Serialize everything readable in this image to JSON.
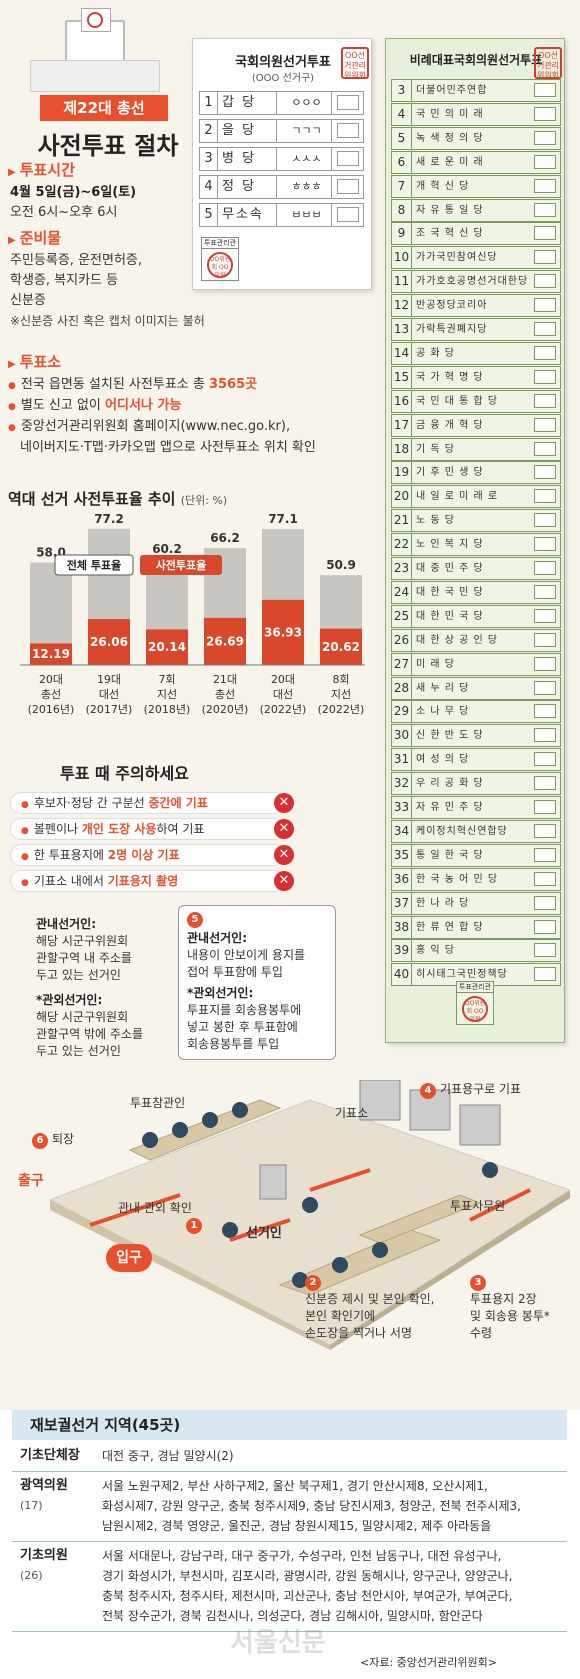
{
  "header": {
    "tag": "제22대 총선",
    "title": "사전투표 절차"
  },
  "sections": {
    "time": {
      "heading": "투표시간",
      "date": "4월 5일(금)~6일(토)",
      "hours": "오전 6시~오후 6시"
    },
    "items": {
      "heading": "준비물",
      "line1": "주민등록증, 운전면허증,",
      "line2": "학생증, 복지카드 등",
      "line3": "신분증",
      "note": "※신분증 사진 혹은 캡처 이미지는 불허"
    },
    "place": {
      "heading": "투표소",
      "b1_pre": "전국 읍면동 설치된 사전투표소 총 ",
      "b1_hl": "3565곳",
      "b2_pre": "별도 신고 없이 ",
      "b2_hl": "어디서나 가능",
      "b3_line1": "중앙선거관리위원회 홈페이지(www.nec.go.kr),",
      "b3_line2": "네이버지도·T맵·카카오맵 앱으로 사전투표소 위치 확인"
    }
  },
  "district_ballot": {
    "title": "국회의원선거투표",
    "subtitle": "(OOO 선거구)",
    "rows": [
      {
        "num": "1",
        "party": "갑  당",
        "cand": "ㅇㅇㅇ"
      },
      {
        "num": "2",
        "party": "을  당",
        "cand": "ㄱㄱㄱ"
      },
      {
        "num": "3",
        "party": "병  당",
        "cand": "ㅅㅅㅅ"
      },
      {
        "num": "4",
        "party": "정  당",
        "cand": "ㅎㅎㅎ"
      },
      {
        "num": "5",
        "party": "무소속",
        "cand": "ㅂㅂㅂ"
      }
    ],
    "stamp_label": "투표관리관",
    "stamp_text": "OO위원회 OO위원",
    "top_stamp": "OO선거관리위원회"
  },
  "pr_ballot": {
    "title": "비례대표국회의원선거투표",
    "stamp_label": "투표관리관",
    "stamp_text": "OO위원회 OO위원",
    "top_stamp": "OO선거관리위원회",
    "rows": [
      {
        "num": "3",
        "party": "더불어민주연합"
      },
      {
        "num": "4",
        "party": "국 민 의 미 래"
      },
      {
        "num": "5",
        "party": "녹 색 정 의 당"
      },
      {
        "num": "6",
        "party": "새 로 운 미 래"
      },
      {
        "num": "7",
        "party": "개   혁   신   당"
      },
      {
        "num": "8",
        "party": "자 유 통 일 당"
      },
      {
        "num": "9",
        "party": "조 국 혁 신 당"
      },
      {
        "num": "10",
        "party": "가가국민참여신당"
      },
      {
        "num": "11",
        "party": "가가호호공명선거대한당"
      },
      {
        "num": "12",
        "party": "반공정당코리아"
      },
      {
        "num": "13",
        "party": "가락특권폐지당"
      },
      {
        "num": "14",
        "party": "공        화        당"
      },
      {
        "num": "15",
        "party": "국 가 혁 명 당"
      },
      {
        "num": "16",
        "party": "국 민 대 통 합 당"
      },
      {
        "num": "17",
        "party": "금 융 개 혁 당"
      },
      {
        "num": "18",
        "party": "기        독        당"
      },
      {
        "num": "19",
        "party": "기 후 민 생 당"
      },
      {
        "num": "20",
        "party": "내 일 로 미 래 로"
      },
      {
        "num": "21",
        "party": "노        동        당"
      },
      {
        "num": "22",
        "party": "노 인 복 지 당"
      },
      {
        "num": "23",
        "party": "대 중 민 주 당"
      },
      {
        "num": "24",
        "party": "대 한 국 민 당"
      },
      {
        "num": "25",
        "party": "대 한 민 국 당"
      },
      {
        "num": "26",
        "party": "대 한 상 공 인 당"
      },
      {
        "num": "27",
        "party": "미        래        당"
      },
      {
        "num": "28",
        "party": "새   누   리   당"
      },
      {
        "num": "29",
        "party": "소   나   무   당"
      },
      {
        "num": "30",
        "party": "신 한 반 도 당"
      },
      {
        "num": "31",
        "party": "여   성   의   당"
      },
      {
        "num": "32",
        "party": "우 리 공 화 당"
      },
      {
        "num": "33",
        "party": "자 유 민 주 당"
      },
      {
        "num": "34",
        "party": "케이정치혁신연합당"
      },
      {
        "num": "35",
        "party": "통 일 한 국 당"
      },
      {
        "num": "36",
        "party": "한 국 농 어 민 당"
      },
      {
        "num": "37",
        "party": "한   나   라   당"
      },
      {
        "num": "38",
        "party": "한 류 연 합 당"
      },
      {
        "num": "39",
        "party": "홍        익        당"
      },
      {
        "num": "40",
        "party": "히시태그국민정책당"
      }
    ]
  },
  "chart_title": "역대 선거 사전투표율 추이",
  "chart_unit": "(단위: %)",
  "chart_data": {
    "type": "bar",
    "categories": [
      [
        "20대",
        "총선",
        "(2016년)"
      ],
      [
        "19대",
        "대선",
        "(2017년)"
      ],
      [
        "7회",
        "지선",
        "(2018년)"
      ],
      [
        "21대",
        "총선",
        "(2020년)"
      ],
      [
        "20대",
        "대선",
        "(2022년)"
      ],
      [
        "8회",
        "지선",
        "(2022년)"
      ]
    ],
    "series": [
      {
        "name": "전체 투표율",
        "values": [
          58.0,
          77.2,
          60.2,
          66.2,
          77.1,
          50.9
        ],
        "labels": [
          "58.0",
          "77.2",
          "60.2",
          "66.2",
          "77.1",
          "50.9"
        ],
        "color": "#c8c6c0"
      },
      {
        "name": "사전투표율",
        "values": [
          12.19,
          26.06,
          20.14,
          26.69,
          36.93,
          20.62
        ],
        "labels": [
          "12.19",
          "26.06",
          "20.14",
          "26.69",
          "36.93",
          "20.62"
        ],
        "color": "#d9482b"
      }
    ],
    "ylim": [
      0,
      85
    ]
  },
  "caution": {
    "title": "투표 때 주의하세요",
    "items": [
      {
        "pre": "후보자·정당 간 구분선 ",
        "hl": "중간에 기표",
        "post": ""
      },
      {
        "pre": "볼펜이나 ",
        "hl": "개인 도장 사용",
        "post": "하여 기표"
      },
      {
        "pre": "한 투표용지에 ",
        "hl": "2명 이상 기표",
        "post": ""
      },
      {
        "pre": "기표소 내에서 ",
        "hl": "기표용지 촬영",
        "post": ""
      }
    ],
    "x_mark": "✕"
  },
  "flow": {
    "local_title": "관내선거인:",
    "local_l1": "해당 시군구위원회",
    "local_l2": "관할구역 내 주소를",
    "local_l3": "두고 있는 선거인",
    "out_title": "*관외선거인:",
    "out_l1": "해당 시군구위원회",
    "out_l2": "관할구역 밖에 주소를",
    "out_l3": "두고 있는 선거인",
    "step5_num": "5",
    "step5_t1": "관내선거인:",
    "step5_l1": "내용이 안보이게 용지를",
    "step5_l2": "접어 투표함에 투입",
    "step5_t2": "*관외선거인:",
    "step5_l3": "투표지를 회송용봉투에",
    "step5_l4": "넣고 봉한 후 투표함에",
    "step5_l5": "회송용봉투를 투입",
    "step4_num": "4",
    "step4_text": "기표용구로 기표",
    "step6_num": "6",
    "step6_text": "퇴장",
    "observer": "투표참관인",
    "exit": "출구",
    "entrance": "입구",
    "check": "관내·관외 확인",
    "step1_num": "1",
    "voter": "선거인",
    "worker": "투표사무원",
    "booth": "기표소",
    "step2_num": "2",
    "step2_l1": "신분증 제시 및 본인 확인,",
    "step2_l2": "본인 확인기에",
    "step2_l3": "손도장을 찍거나 서명",
    "step3_num": "3",
    "step3_l1": "투표용지 2장",
    "step3_l2": "및 회송용 봉투*",
    "step3_l3": "수령"
  },
  "by_election": {
    "title": "재보궐선거 지역(45곳)",
    "rows": [
      {
        "label": "기초단체장",
        "sub": "",
        "lines": [
          "대전 중구, 경남 밀양시(2)"
        ]
      },
      {
        "label": "광역의원",
        "sub": "(17)",
        "lines": [
          "서울 노원구제2, 부산 사하구제2, 울산 북구제1, 경기 안산시제8, 오산시제1,",
          "화성시제7, 강원 양구군, 충북 청주시제9, 충남 당진시제3, 청양군, 전북 전주시제3,",
          "남원시제2, 경북 영양군, 울진군, 경남 창원시제15, 밀양시제2, 제주 아라동을"
        ]
      },
      {
        "label": "기초의원",
        "sub": "(26)",
        "lines": [
          "서울 서대문나, 강남구라, 대구 중구가, 수성구라, 인천 남동구나, 대전 유성구나,",
          "경기 화성시가, 부천시마, 김포시라, 광명시라, 강원 동해시나, 양구군나, 양양군나,",
          "충북 청주시자, 청주시타, 제천시마, 괴산군나, 충남 천안시아, 부여군가, 부여군다,",
          "전북 장수군가, 경북 김천시나, 의성군다, 경남 김해시아, 밀양시마, 함안군다"
        ]
      }
    ]
  },
  "watermark": "서울신문",
  "source": "<자료: 중앙선거관리위원회>"
}
